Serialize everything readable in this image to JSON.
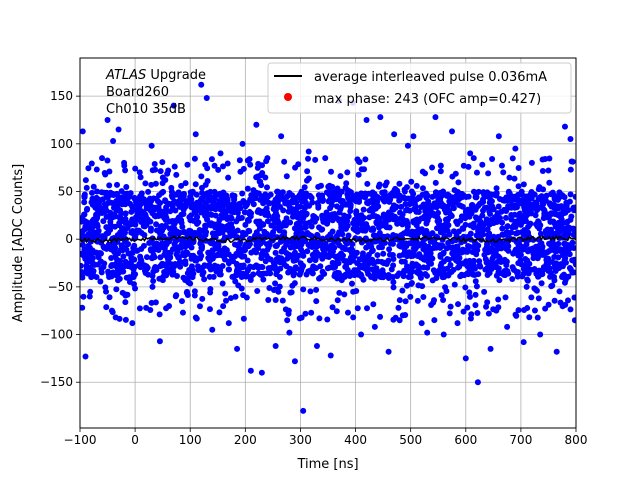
{
  "chart_data": {
    "type": "scatter",
    "xlabel": "Time [ns]",
    "ylabel": "Amplitude [ADC Counts]",
    "xlim": [
      -100,
      800
    ],
    "ylim": [
      -198,
      190
    ],
    "xticks": [
      -100,
      0,
      100,
      200,
      300,
      400,
      500,
      600,
      700,
      800
    ],
    "yticks": [
      -150,
      -100,
      -50,
      0,
      50,
      100,
      150
    ],
    "grid": true,
    "legend_position": "top-right",
    "annotation": {
      "atlas": "ATLAS",
      "upgrade": " Upgrade",
      "line2": " Board260",
      "line3": " Ch010 35dB"
    },
    "series": [
      {
        "name": "average interleaved pulse 0.036mA",
        "kind": "line",
        "color": "#000000",
        "x_start": -100,
        "x_end": 800,
        "mean": 0
      },
      {
        "name": "max phase: 243 (OFC amp=0.427)",
        "kind": "scatter",
        "color": "#ff0000",
        "points_color": "#0000ff",
        "dense_band": [
          -40,
          50
        ],
        "outliers": [
          [
            -95,
            113
          ],
          [
            -90,
            -123
          ],
          [
            -75,
            55
          ],
          [
            -60,
            85
          ],
          [
            -50,
            125
          ],
          [
            -40,
            103
          ],
          [
            -30,
            115
          ],
          [
            -20,
            80
          ],
          [
            -5,
            -88
          ],
          [
            10,
            65
          ],
          [
            20,
            -72
          ],
          [
            30,
            98
          ],
          [
            45,
            -107
          ],
          [
            60,
            72
          ],
          [
            70,
            140
          ],
          [
            85,
            -65
          ],
          [
            95,
            78
          ],
          [
            110,
            110
          ],
          [
            120,
            162
          ],
          [
            130,
            148
          ],
          [
            140,
            -95
          ],
          [
            155,
            90
          ],
          [
            170,
            -88
          ],
          [
            185,
            -115
          ],
          [
            195,
            100
          ],
          [
            210,
            -138
          ],
          [
            220,
            120
          ],
          [
            230,
            -140
          ],
          [
            240,
            85
          ],
          [
            255,
            -112
          ],
          [
            265,
            108
          ],
          [
            280,
            -98
          ],
          [
            290,
            -128
          ],
          [
            305,
            -180
          ],
          [
            315,
            92
          ],
          [
            330,
            -112
          ],
          [
            345,
            85
          ],
          [
            355,
            -122
          ],
          [
            370,
            145
          ],
          [
            385,
            70
          ],
          [
            395,
            143
          ],
          [
            410,
            -100
          ],
          [
            420,
            125
          ],
          [
            435,
            -92
          ],
          [
            445,
            128
          ],
          [
            460,
            -118
          ],
          [
            470,
            110
          ],
          [
            480,
            -85
          ],
          [
            495,
            98
          ],
          [
            505,
            108
          ],
          [
            520,
            -88
          ],
          [
            530,
            -98
          ],
          [
            545,
            128
          ],
          [
            560,
            -100
          ],
          [
            575,
            113
          ],
          [
            585,
            -88
          ],
          [
            600,
            -125
          ],
          [
            608,
            90
          ],
          [
            622,
            -150
          ],
          [
            630,
            78
          ],
          [
            645,
            -115
          ],
          [
            660,
            108
          ],
          [
            675,
            -92
          ],
          [
            690,
            95
          ],
          [
            705,
            -108
          ],
          [
            720,
            80
          ],
          [
            735,
            -100
          ],
          [
            750,
            72
          ],
          [
            765,
            -118
          ],
          [
            780,
            118
          ],
          [
            790,
            105
          ],
          [
            798,
            -85
          ]
        ]
      }
    ]
  }
}
